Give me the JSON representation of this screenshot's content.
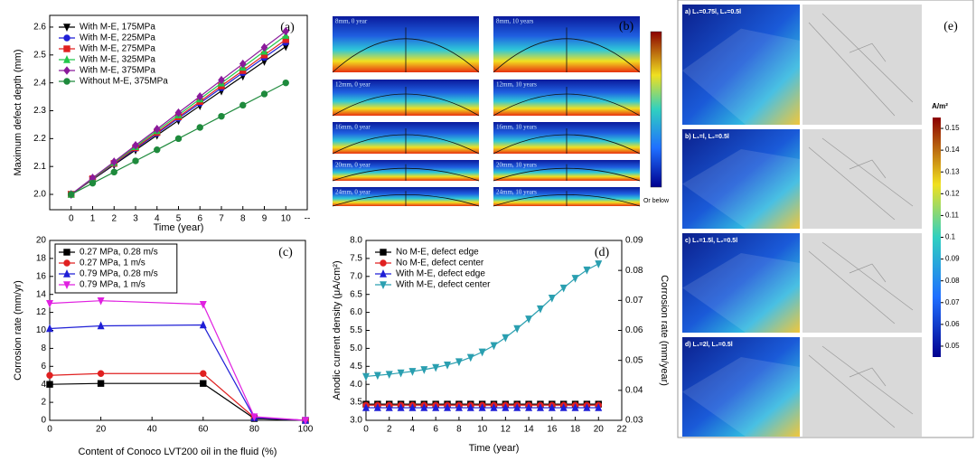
{
  "chart_data": [
    {
      "type": "line",
      "annotation": "(a)",
      "xlabel": "Time (year)",
      "ylabel": "Maximum defect depth (mm)",
      "x": [
        0,
        1,
        2,
        3,
        4,
        5,
        6,
        7,
        8,
        9,
        10
      ],
      "xlim": [
        -1,
        11
      ],
      "xticks": [
        0,
        1,
        2,
        3,
        4,
        5,
        6,
        7,
        8,
        9,
        10,
        {
          "value": 11,
          "label": "--"
        }
      ],
      "ylim": [
        1.945,
        2.642
      ],
      "yticks": [
        {
          "value": 2,
          "label": "2.0"
        },
        2.1,
        2.2,
        2.3,
        2.4,
        2.5,
        2.6
      ],
      "legend": "upper left",
      "legend_frame": false,
      "series": [
        {
          "name": "With M-E, 175MPa",
          "color": "#000000",
          "marker": "triangle-down",
          "values": [
            2.0,
            2.053,
            2.106,
            2.159,
            2.212,
            2.265,
            2.318,
            2.371,
            2.424,
            2.477,
            2.53
          ]
        },
        {
          "name": "With M-E, 225MPa",
          "color": "#1f1fd6",
          "marker": "circle",
          "values": [
            2.0,
            2.055,
            2.109,
            2.164,
            2.218,
            2.273,
            2.327,
            2.382,
            2.436,
            2.491,
            2.545
          ]
        },
        {
          "name": "With M-E, 275MPa",
          "color": "#e02020",
          "marker": "square",
          "values": [
            2.0,
            2.056,
            2.111,
            2.167,
            2.222,
            2.278,
            2.333,
            2.389,
            2.444,
            2.5,
            2.555
          ]
        },
        {
          "name": "With M-E, 325MPa",
          "color": "#22c84a",
          "marker": "triangle-up",
          "values": [
            2.0,
            2.057,
            2.114,
            2.171,
            2.228,
            2.285,
            2.342,
            2.399,
            2.456,
            2.513,
            2.57
          ]
        },
        {
          "name": "With M-E, 375MPa",
          "color": "#8b1a9b",
          "marker": "diamond",
          "values": [
            2.0,
            2.059,
            2.117,
            2.176,
            2.234,
            2.293,
            2.351,
            2.41,
            2.468,
            2.527,
            2.585
          ]
        },
        {
          "name": "Without M-E, 375MPa",
          "color": "#1e8a3c",
          "marker": "circle",
          "values": [
            2.0,
            2.04,
            2.08,
            2.12,
            2.16,
            2.2,
            2.24,
            2.28,
            2.32,
            2.36,
            2.4
          ]
        }
      ]
    },
    {
      "type": "line",
      "annotation": "(c)",
      "xlabel": "Content of Conoco LVT200 oil in the fluid (%)",
      "ylabel": "Corrosion rate (mm/yr)",
      "x": [
        0,
        20,
        60,
        80,
        100
      ],
      "xlim": [
        0,
        100
      ],
      "xticks": [
        0,
        20,
        40,
        60,
        80,
        100
      ],
      "ylim": [
        0,
        20
      ],
      "yticks": [
        0,
        2,
        4,
        6,
        8,
        10,
        12,
        14,
        16,
        18,
        20
      ],
      "legend": "upper left",
      "legend_frame": true,
      "series": [
        {
          "name": "0.27 MPa, 0.28 m/s",
          "color": "#000000",
          "marker": "square",
          "values": [
            4.0,
            4.1,
            4.1,
            0.2,
            0
          ]
        },
        {
          "name": "0.27 MPa, 1 m/s",
          "color": "#e02020",
          "marker": "circle",
          "values": [
            5.0,
            5.2,
            5.2,
            0.3,
            0
          ]
        },
        {
          "name": "0.79 MPa, 0.28 m/s",
          "color": "#1f1fd6",
          "marker": "triangle-up",
          "values": [
            10.2,
            10.5,
            10.6,
            0.3,
            0
          ]
        },
        {
          "name": "0.79 MPa, 1 m/s",
          "color": "#e020e0",
          "marker": "triangle-down",
          "values": [
            13.0,
            13.3,
            12.9,
            0.4,
            0
          ]
        }
      ]
    },
    {
      "type": "line",
      "annotation": "(d)",
      "xlabel": "Time (year)",
      "ylabel": "Anodic current density (μA/cm²)",
      "y2label": "Corrosion rate (mm/year)",
      "x": [
        0,
        1,
        2,
        3,
        4,
        5,
        6,
        7,
        8,
        9,
        10,
        11,
        12,
        13,
        14,
        15,
        16,
        17,
        18,
        19,
        20
      ],
      "xlim": [
        0,
        22
      ],
      "xticks": [
        0,
        2,
        4,
        6,
        8,
        10,
        12,
        14,
        16,
        18,
        20,
        22
      ],
      "ylim": [
        3,
        8
      ],
      "yticks": [
        {
          "value": 3,
          "label": "3.0"
        },
        3.5,
        {
          "value": 4,
          "label": "4.0"
        },
        4.5,
        {
          "value": 5,
          "label": "5.0"
        },
        5.5,
        {
          "value": 6,
          "label": "6.0"
        },
        6.5,
        {
          "value": 7,
          "label": "7.0"
        },
        7.5,
        {
          "value": 8,
          "label": "8.0"
        }
      ],
      "y2lim": [
        0.03,
        0.09
      ],
      "y2ticks": [
        0.03,
        0.04,
        0.05,
        0.06,
        0.07,
        0.08,
        0.09
      ],
      "legend": "upper left",
      "legend_frame": false,
      "series": [
        {
          "name": "No M-E, defect edge",
          "color": "#000000",
          "marker": "square",
          "values": [
            3.45,
            3.45,
            3.45,
            3.45,
            3.45,
            3.45,
            3.45,
            3.45,
            3.45,
            3.45,
            3.45,
            3.45,
            3.45,
            3.45,
            3.45,
            3.45,
            3.45,
            3.45,
            3.45,
            3.45,
            3.45
          ]
        },
        {
          "name": "No M-E, defect center",
          "color": "#e02020",
          "marker": "circle",
          "values": [
            3.42,
            3.42,
            3.42,
            3.42,
            3.42,
            3.42,
            3.42,
            3.42,
            3.42,
            3.42,
            3.42,
            3.42,
            3.42,
            3.42,
            3.42,
            3.42,
            3.42,
            3.42,
            3.42,
            3.42,
            3.42
          ]
        },
        {
          "name": "With M-E, defect edge",
          "color": "#1f1fd6",
          "marker": "triangle-up",
          "values": [
            3.35,
            3.35,
            3.35,
            3.35,
            3.35,
            3.35,
            3.35,
            3.35,
            3.35,
            3.35,
            3.35,
            3.35,
            3.35,
            3.35,
            3.35,
            3.35,
            3.35,
            3.35,
            3.35,
            3.35,
            3.35
          ]
        },
        {
          "name": "With M-E, defect center",
          "color": "#2a9fb0",
          "marker": "triangle-down",
          "values": [
            4.22,
            4.25,
            4.28,
            4.32,
            4.36,
            4.41,
            4.47,
            4.54,
            4.63,
            4.75,
            4.9,
            5.08,
            5.3,
            5.55,
            5.82,
            6.1,
            6.4,
            6.68,
            6.95,
            7.18,
            7.35
          ]
        }
      ]
    }
  ],
  "panel_b": {
    "annotation": "(b)",
    "frames": [
      "8mm, 0 year",
      "8mm, 10 years",
      "12mm, 0 year",
      "12mm, 10 years",
      "16mm, 0 year",
      "16mm, 10 years",
      "20mm, 0 year",
      "20mm, 10 years",
      "24mm, 0 year",
      "24mm, 10 years"
    ],
    "colorbar_label": "Or below"
  },
  "panel_e": {
    "annotation": "(e)",
    "frames": [
      "a) L₁=0.75l, L₂=0.5l",
      "b) L₁=l, L₂=0.5l",
      "c) L₁=1.5l, L₂=0.5l",
      "d) L₁=2l, L₂=0.5l"
    ],
    "colorbar_unit": "A/m²",
    "colorbar_range": [
      0.045,
      0.155
    ],
    "colorbar_ticks": [
      0.15,
      0.14,
      0.13,
      0.12,
      0.11,
      0.1,
      0.09,
      0.08,
      0.07,
      0.06,
      0.05
    ]
  }
}
